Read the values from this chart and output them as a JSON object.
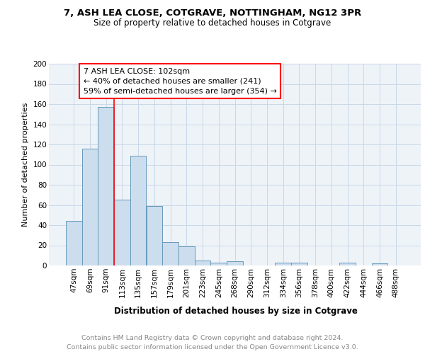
{
  "title1": "7, ASH LEA CLOSE, COTGRAVE, NOTTINGHAM, NG12 3PR",
  "title2": "Size of property relative to detached houses in Cotgrave",
  "xlabel": "Distribution of detached houses by size in Cotgrave",
  "ylabel": "Number of detached properties",
  "footnote1": "Contains HM Land Registry data © Crown copyright and database right 2024.",
  "footnote2": "Contains public sector information licensed under the Open Government Licence v3.0.",
  "bar_labels": [
    "47sqm",
    "69sqm",
    "91sqm",
    "113sqm",
    "135sqm",
    "157sqm",
    "179sqm",
    "201sqm",
    "223sqm",
    "245sqm",
    "268sqm",
    "290sqm",
    "312sqm",
    "334sqm",
    "356sqm",
    "378sqm",
    "400sqm",
    "422sqm",
    "444sqm",
    "466sqm",
    "488sqm"
  ],
  "bar_values": [
    44,
    116,
    157,
    65,
    109,
    59,
    23,
    19,
    5,
    3,
    4,
    0,
    0,
    3,
    3,
    0,
    0,
    3,
    0,
    2,
    0
  ],
  "bar_color": "#ccdded",
  "bar_edge_color": "#6699bb",
  "annotation_box_text": "7 ASH LEA CLOSE: 102sqm\n← 40% of detached houses are smaller (241)\n59% of semi-detached houses are larger (354) →",
  "redline_x": 2.5,
  "ylim": [
    0,
    200
  ],
  "yticks": [
    0,
    20,
    40,
    60,
    80,
    100,
    120,
    140,
    160,
    180,
    200
  ],
  "bg_color": "#eef3f8",
  "grid_color": "#c8d8e8",
  "title1_fontsize": 9.5,
  "title2_fontsize": 8.5,
  "xlabel_fontsize": 8.5,
  "ylabel_fontsize": 8,
  "tick_fontsize": 7.5,
  "annotation_fontsize": 8,
  "footnote_fontsize": 6.8,
  "footnote_color": "#888888"
}
